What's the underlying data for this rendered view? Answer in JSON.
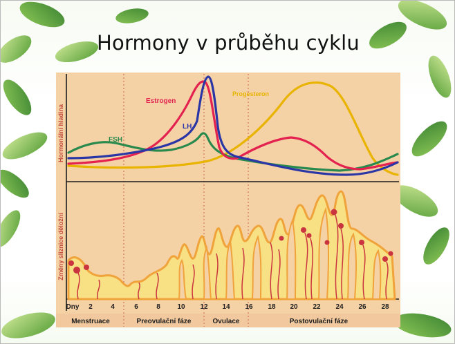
{
  "slide": {
    "title": "Hormony v průběhu cyklu"
  },
  "figure": {
    "hormone_axis_label": "Hormonální hladina",
    "endometrium_axis_label": "Změny sliznice děložní",
    "curves": [
      {
        "name": "Estrogen",
        "color": "#e3224f"
      },
      {
        "name": "LH",
        "color": "#2a36a6"
      },
      {
        "name": "FSH",
        "color": "#2a8a4e"
      },
      {
        "name": "Progesteron",
        "color": "#e8b400"
      }
    ],
    "day_axis": {
      "label": "Dny",
      "ticks": [
        "2",
        "4",
        "6",
        "8",
        "10",
        "12",
        "14",
        "16",
        "18",
        "20",
        "22",
        "24",
        "26",
        "28"
      ]
    },
    "phases": [
      "Menstruace",
      "Preovulační fáze",
      "Ovulace",
      "Postovulační fáze"
    ],
    "colors": {
      "panel": "#f5d1a6",
      "phase_bar": "#f2c99e",
      "tissue": "#f8e085",
      "tissue_edge": "#f0a33a",
      "vessel": "#c9343e"
    }
  }
}
